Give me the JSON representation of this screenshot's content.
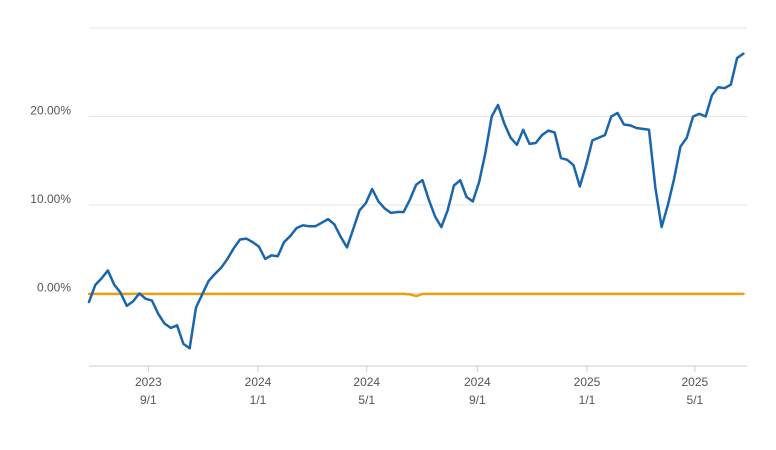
{
  "chart_data": {
    "type": "line",
    "x": [
      "2023-06-27",
      "2023-07-04",
      "2023-07-11",
      "2023-07-18",
      "2023-07-25",
      "2023-08-01",
      "2023-08-08",
      "2023-08-15",
      "2023-08-22",
      "2023-08-29",
      "2023-09-05",
      "2023-09-12",
      "2023-09-19",
      "2023-09-26",
      "2023-10-03",
      "2023-10-10",
      "2023-10-17",
      "2023-10-24",
      "2023-10-31",
      "2023-11-07",
      "2023-11-14",
      "2023-11-21",
      "2023-11-28",
      "2023-12-05",
      "2023-12-12",
      "2023-12-19",
      "2023-12-26",
      "2024-01-02",
      "2024-01-09",
      "2024-01-16",
      "2024-01-23",
      "2024-01-30",
      "2024-02-06",
      "2024-02-13",
      "2024-02-20",
      "2024-02-27",
      "2024-03-05",
      "2024-03-12",
      "2024-03-19",
      "2024-03-26",
      "2024-04-02",
      "2024-04-09",
      "2024-04-16",
      "2024-04-23",
      "2024-04-30",
      "2024-05-07",
      "2024-05-14",
      "2024-05-21",
      "2024-05-28",
      "2024-06-04",
      "2024-06-11",
      "2024-06-18",
      "2024-06-25",
      "2024-07-02",
      "2024-07-09",
      "2024-07-16",
      "2024-07-23",
      "2024-07-30",
      "2024-08-06",
      "2024-08-13",
      "2024-08-20",
      "2024-08-27",
      "2024-09-03",
      "2024-09-10",
      "2024-09-17",
      "2024-09-24",
      "2024-10-01",
      "2024-10-08",
      "2024-10-15",
      "2024-10-22",
      "2024-10-29",
      "2024-11-05",
      "2024-11-12",
      "2024-11-19",
      "2024-11-26",
      "2024-12-03",
      "2024-12-10",
      "2024-12-17",
      "2024-12-24",
      "2024-12-31",
      "2025-01-07",
      "2025-01-14",
      "2025-01-21",
      "2025-01-28",
      "2025-02-04",
      "2025-02-11",
      "2025-02-18",
      "2025-02-25",
      "2025-03-04",
      "2025-03-11",
      "2025-03-18",
      "2025-03-25",
      "2025-04-01",
      "2025-04-08",
      "2025-04-15",
      "2025-04-22",
      "2025-04-29",
      "2025-05-06",
      "2025-05-13",
      "2025-05-20",
      "2025-05-27",
      "2025-06-03",
      "2025-06-10",
      "2025-06-17",
      "2025-06-24"
    ],
    "series": [
      {
        "color": "#1a66ad",
        "values": [
          -0.96,
          0.96,
          1.7,
          2.6,
          1.0,
          0.1,
          -1.4,
          -0.9,
          0.0,
          -0.6,
          -0.8,
          -2.3,
          -3.4,
          -3.9,
          -3.6,
          -5.7,
          -6.2,
          -1.6,
          -0.1,
          1.4,
          2.2,
          2.9,
          3.9,
          5.1,
          6.1,
          6.2,
          5.8,
          5.3,
          3.9,
          4.3,
          4.2,
          5.8,
          6.5,
          7.4,
          7.7,
          7.6,
          7.6,
          8.0,
          8.4,
          7.8,
          6.4,
          5.2,
          7.3,
          9.4,
          10.2,
          11.8,
          10.4,
          9.6,
          9.1,
          9.2,
          9.2,
          10.6,
          12.3,
          12.8,
          10.6,
          8.7,
          7.5,
          9.4,
          12.2,
          12.8,
          10.9,
          10.4,
          12.6,
          15.9,
          20.0,
          21.3,
          19.2,
          17.6,
          16.8,
          18.5,
          16.9,
          17.0,
          17.9,
          18.4,
          18.2,
          15.3,
          15.1,
          14.5,
          12.1,
          14.5,
          17.3,
          17.6,
          17.9,
          20.0,
          20.4,
          19.1,
          19.0,
          18.7,
          18.6,
          18.5,
          12.0,
          7.5,
          10.0,
          13.0,
          16.6,
          17.6,
          20.0,
          20.3,
          20.0,
          22.4,
          23.3,
          23.2,
          23.6,
          26.6,
          27.1
        ]
      },
      {
        "color": "#ef9d10",
        "values": [
          -0.05,
          -0.05,
          -0.05,
          -0.05,
          -0.05,
          -0.05,
          -0.05,
          -0.05,
          -0.05,
          -0.05,
          -0.05,
          -0.05,
          -0.05,
          -0.05,
          -0.05,
          -0.05,
          -0.05,
          -0.05,
          -0.05,
          -0.05,
          -0.05,
          -0.05,
          -0.05,
          -0.05,
          -0.05,
          -0.05,
          -0.05,
          -0.05,
          -0.05,
          -0.05,
          -0.05,
          -0.05,
          -0.05,
          -0.05,
          -0.05,
          -0.05,
          -0.05,
          -0.05,
          -0.05,
          -0.05,
          -0.05,
          -0.05,
          -0.05,
          -0.05,
          -0.05,
          -0.05,
          -0.05,
          -0.05,
          -0.05,
          -0.05,
          -0.05,
          -0.1,
          -0.3,
          -0.05,
          -0.05,
          -0.05,
          -0.05,
          -0.05,
          -0.05,
          -0.05,
          -0.05,
          -0.05,
          -0.05,
          -0.05,
          -0.05,
          -0.05,
          -0.05,
          -0.05,
          -0.05,
          -0.05,
          -0.05,
          -0.05,
          -0.05,
          -0.05,
          -0.05,
          -0.05,
          -0.05,
          -0.05,
          -0.05,
          -0.05,
          -0.05,
          -0.05,
          -0.05,
          -0.05,
          -0.05,
          -0.05,
          -0.05,
          -0.05,
          -0.05,
          -0.05,
          -0.05,
          -0.05,
          -0.05,
          -0.05,
          -0.05,
          -0.05,
          -0.05,
          -0.05,
          -0.05,
          -0.05,
          -0.05,
          -0.05,
          -0.05,
          -0.05,
          -0.05
        ]
      }
    ],
    "xlim": [
      "2023-06-27",
      "2025-06-28"
    ],
    "xticks": [
      {
        "value": "2023-09-01",
        "year": "2023",
        "label": "9/1"
      },
      {
        "value": "2024-01-01",
        "year": "2024",
        "label": "1/1"
      },
      {
        "value": "2024-05-01",
        "year": "2024",
        "label": "5/1"
      },
      {
        "value": "2024-09-01",
        "year": "2024",
        "label": "9/1"
      },
      {
        "value": "2025-01-01",
        "year": "2025",
        "label": "1/1"
      },
      {
        "value": "2025-05-01",
        "year": "2025",
        "label": "5/1"
      }
    ],
    "ylim": [
      -8.2,
      30
    ],
    "yticks": [
      {
        "value": 0,
        "label": "0.00%"
      },
      {
        "value": 10,
        "label": "10.00%"
      },
      {
        "value": 20,
        "label": "20.00%"
      }
    ],
    "grid": true
  }
}
